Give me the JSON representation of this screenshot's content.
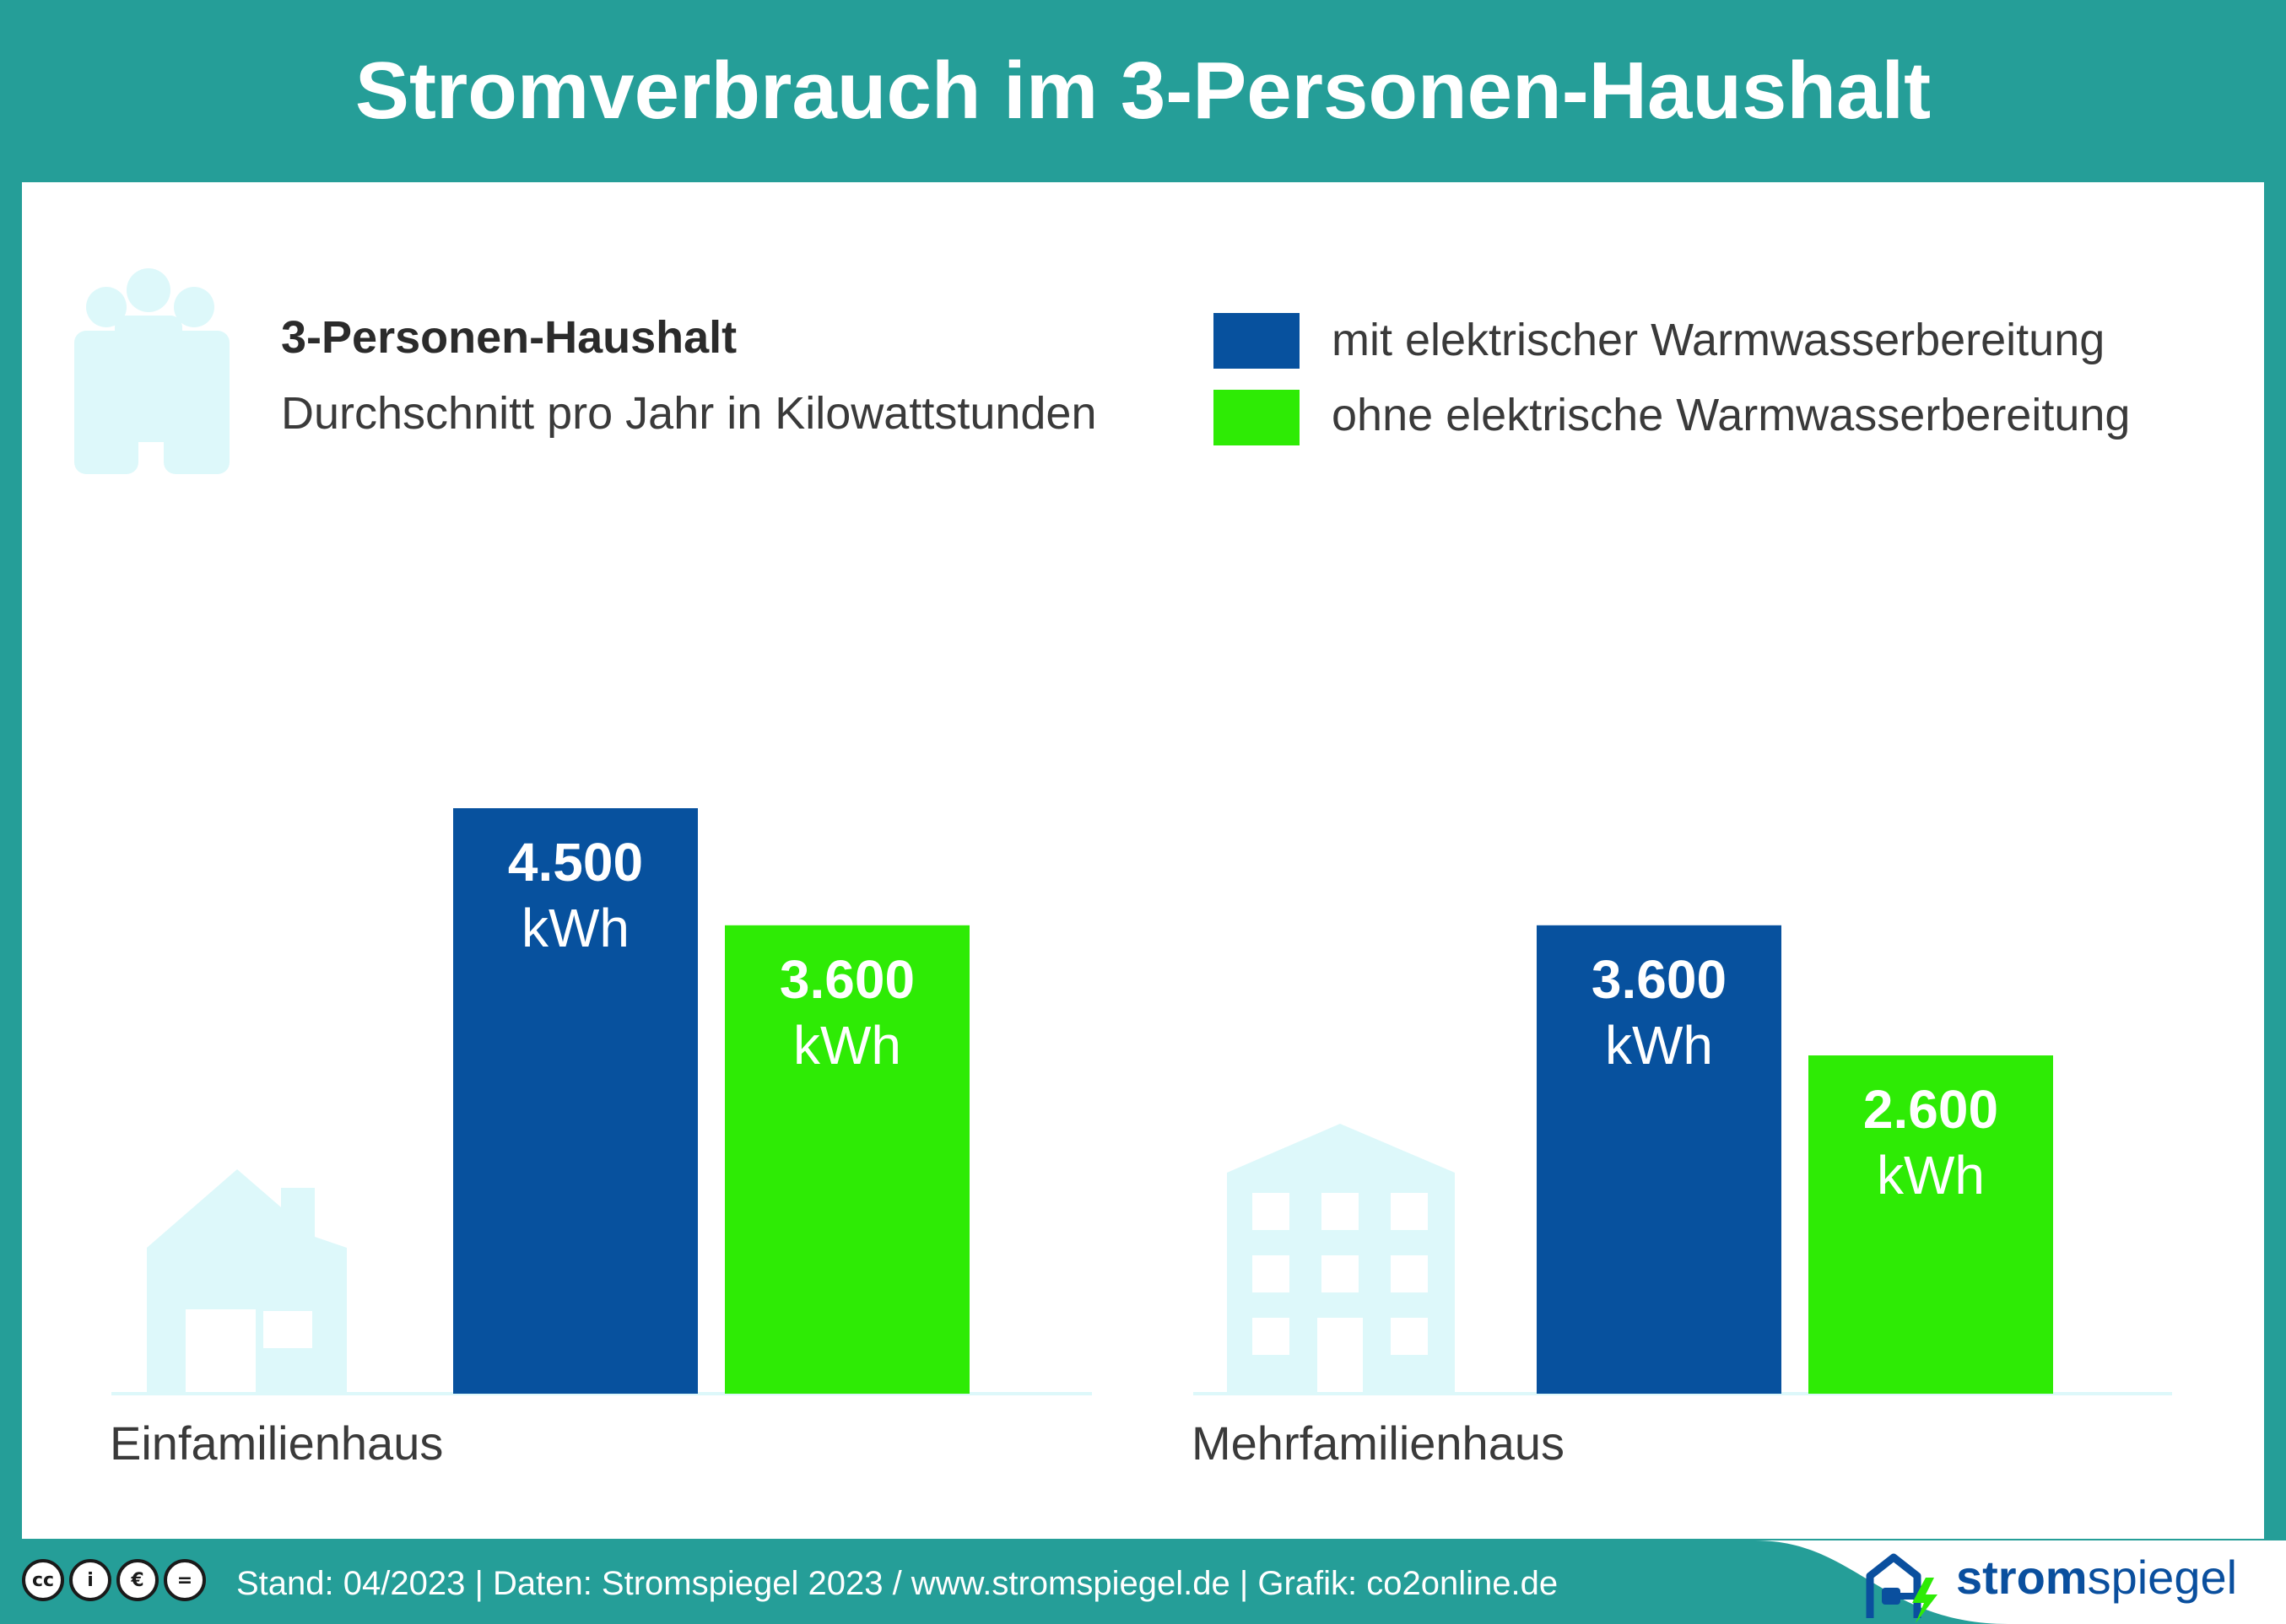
{
  "title": "Stromverbrauch im 3-Personen-Haushalt",
  "legend": {
    "heading": "3-Personen-Haushalt",
    "subheading": "Durchschnitt pro Jahr in Kilowattstunden",
    "items": [
      {
        "label": "mit elektrischer Warmwasserbereitung",
        "color": "#07519E"
      },
      {
        "label": "ohne elektrische Warmwasserbereitung",
        "color": "#2EEB05"
      }
    ]
  },
  "chart_data": {
    "type": "bar",
    "title": "Stromverbrauch im 3-Personen-Haushalt",
    "categories": [
      "Einfamilienhaus",
      "Mehrfamilienhaus"
    ],
    "series": [
      {
        "name": "mit elektrischer Warmwasserbereitung",
        "values": [
          4500,
          3600
        ],
        "labels": [
          "4.500",
          "3.600"
        ],
        "color": "#07519E"
      },
      {
        "name": "ohne elektrische Warmwasserbereitung",
        "values": [
          3600,
          2600
        ],
        "labels": [
          "3.600",
          "2.600"
        ],
        "color": "#2EEB05"
      }
    ],
    "unit": "kWh",
    "ylim": [
      0,
      4500
    ],
    "grid": false,
    "legend_position": "top-right"
  },
  "icons": {
    "people": "people-icon",
    "house": "house-icon",
    "building": "building-icon",
    "logo": "house-plug-icon"
  },
  "colors": {
    "teal": "#259E98",
    "pale_icon": "#DDF8FA",
    "brand_blue": "#0A4F9E"
  },
  "footer": {
    "license_icons": [
      "cc-icon",
      "by-icon",
      "nc-icon",
      "nd-icon"
    ],
    "license_glyphs": [
      "cc",
      "i",
      "€",
      "="
    ],
    "credits": "Stand: 04/2023  |  Daten: Stromspiegel 2023 / www.stromspiegel.de  |  Grafik: co2online.de",
    "brand_bold": "strom",
    "brand_regular": "spiegel"
  }
}
